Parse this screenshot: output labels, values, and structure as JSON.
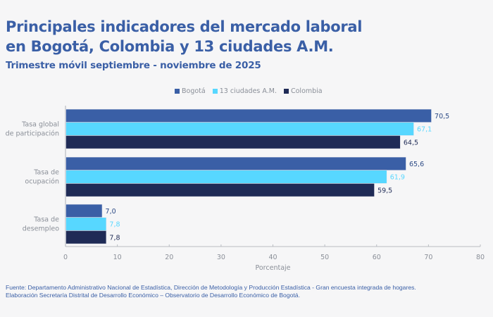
{
  "header": {
    "title_line1": "Principales indicadores del mercado laboral",
    "title_line2": "en Bogotá, Colombia y 13 ciudades A.M.",
    "subtitle": "Trimestre móvil septiembre - noviembre de 2025"
  },
  "footer": {
    "line1": "Fuente: Departamento Administrativo Nacional de Estadística, Dirección de Metodología y Producción Estadística - Gran encuesta integrada de hogares.",
    "line2": "Elaboración Secretaría Distrital de Desarrollo Económico – Observatorio de Desarrollo Económico de Bogotá."
  },
  "chart_data": {
    "type": "bar",
    "orientation": "horizontal",
    "title": "Principales indicadores del mercado laboral en Bogotá, Colombia y 13 ciudades A.M.",
    "subtitle": "Trimestre móvil septiembre - noviembre de 2025",
    "categories": [
      [
        "Tasa global",
        "de participación"
      ],
      [
        "Tasa de",
        "ocupación"
      ],
      [
        "Tasa de",
        "desempleo"
      ]
    ],
    "series": [
      {
        "name": "Bogotá",
        "color": "#3a5fa6",
        "label_color": "#2c4a85",
        "values": [
          70.5,
          65.6,
          7.0
        ],
        "labels": [
          "70,5",
          "65,6",
          "7,0"
        ]
      },
      {
        "name": "13 ciudades A.M.",
        "color": "#57d7ff",
        "label_color": "#57d7ff",
        "values": [
          67.1,
          61.9,
          7.8
        ],
        "labels": [
          "67,1",
          "61,9",
          "7,8"
        ]
      },
      {
        "name": "Colombia",
        "color": "#1f2b56",
        "label_color": "#1f2b56",
        "values": [
          64.5,
          59.5,
          7.8
        ],
        "labels": [
          "64,5",
          "59,5",
          "7,8"
        ]
      }
    ],
    "xlabel": "Porcentaje",
    "ylabel": "",
    "xlim": [
      0,
      80
    ],
    "xticks": [
      0,
      10,
      20,
      30,
      40,
      50,
      60,
      70,
      80
    ],
    "grid": false,
    "legend_position": "top-right"
  }
}
